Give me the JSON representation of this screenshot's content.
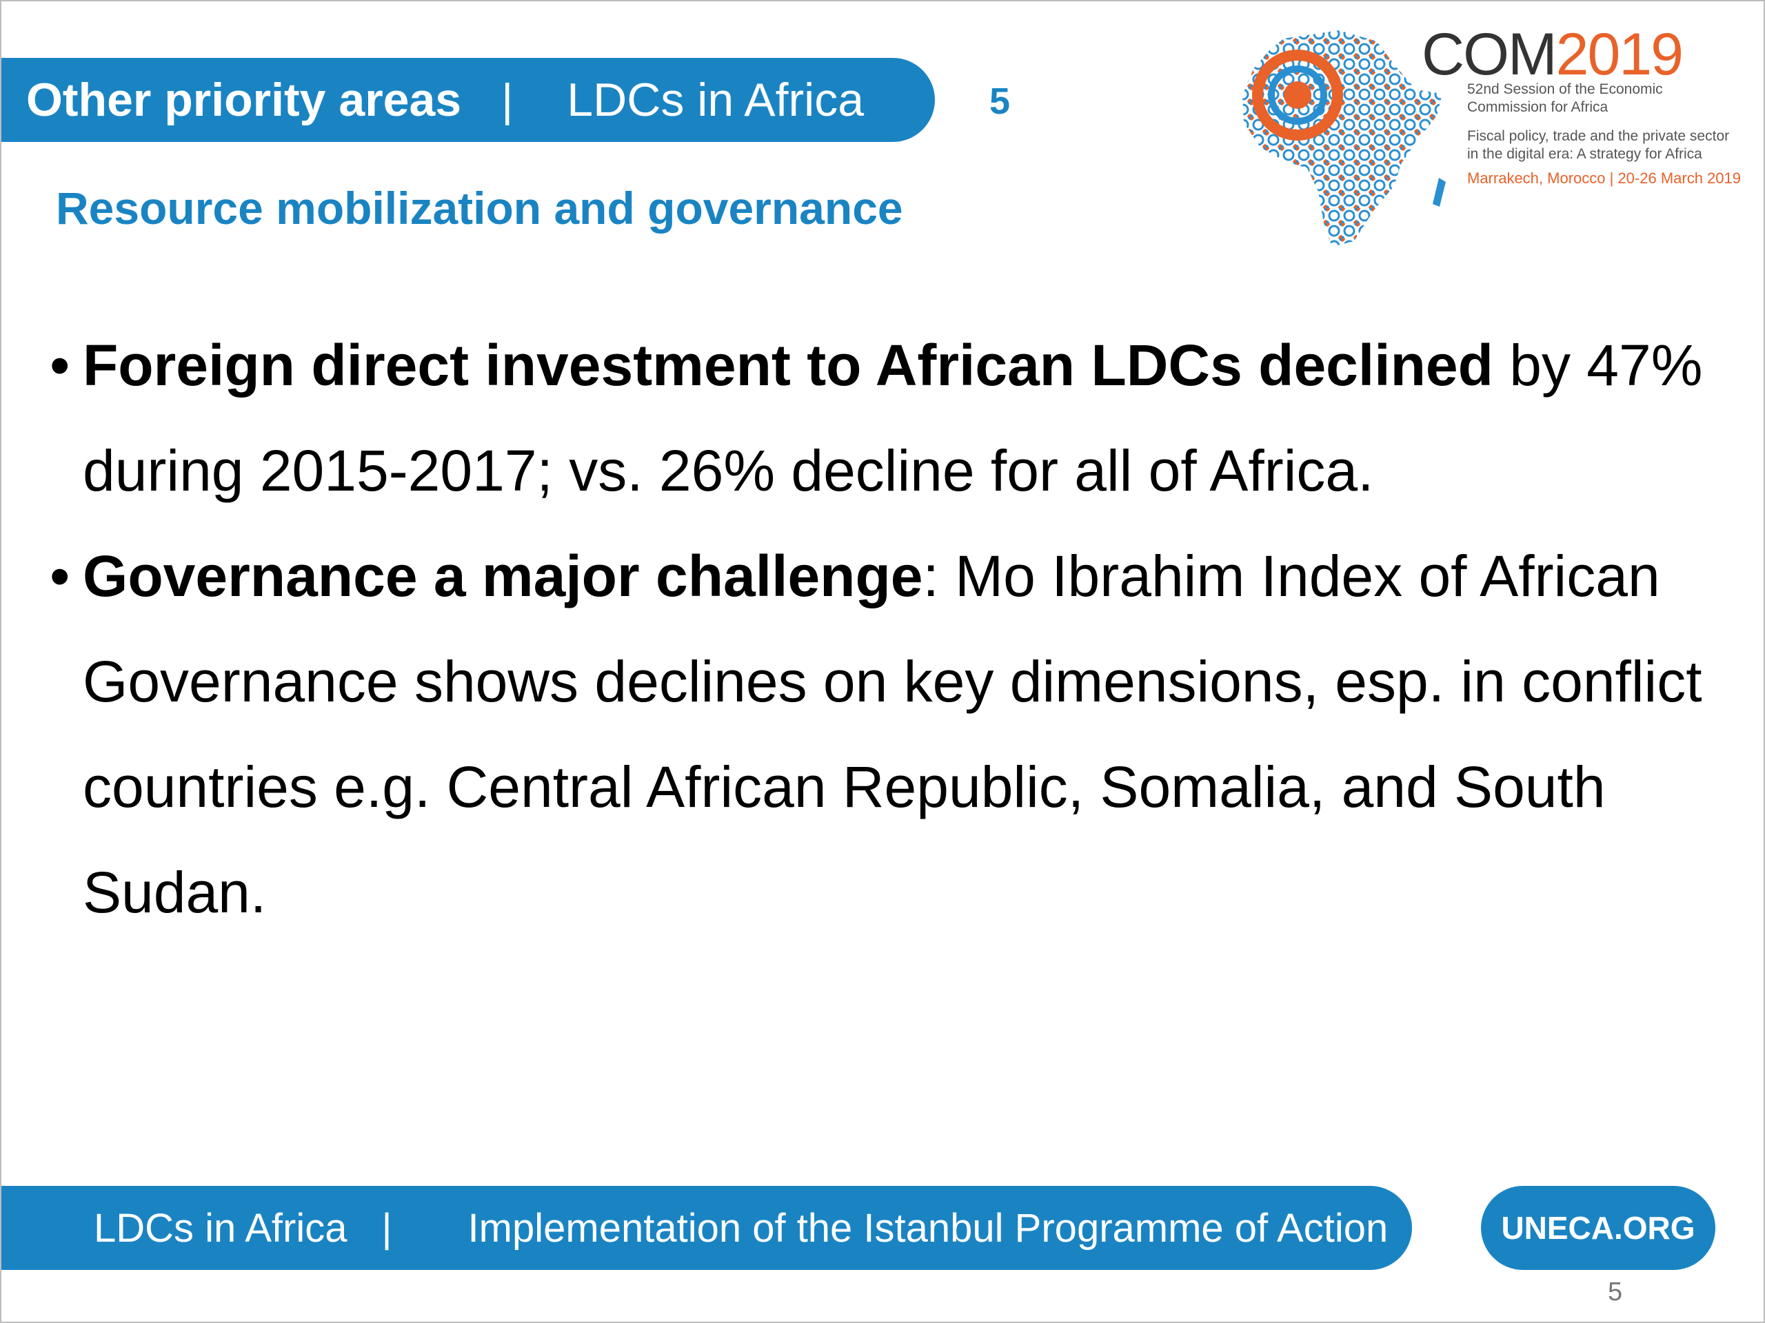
{
  "header": {
    "left": "Other priority areas",
    "separator": "|",
    "right": "LDCs in Africa",
    "slide_number": "5"
  },
  "subtitle": "Resource mobilization and governance",
  "logo": {
    "title_prefix": "COM",
    "title_year": "2019",
    "line1": "52nd Session of the Economic",
    "line2": "Commission for Africa",
    "line3": "Fiscal policy, trade and the private sector",
    "line4": "in the digital era: A strategy for Africa",
    "line5": "Marrakech, Morocco | 20-26 March 2019",
    "colors": {
      "blue": "#1a84c3",
      "orange": "#e8622a"
    }
  },
  "bullets": [
    {
      "bold": "Foreign direct investment to African LDCs declined",
      "rest": " by 47% during 2015-2017; vs. 26% decline for all of Africa."
    },
    {
      "bold": "Governance a major challenge",
      "rest": ": Mo Ibrahim Index of African Governance shows declines on key dimensions, esp. in conflict countries e.g. Central African Republic, Somalia, and South Sudan."
    }
  ],
  "footer": {
    "left": "LDCs in Africa",
    "separator": "|",
    "right": "Implementation of the Istanbul Programme of Action",
    "badge": "UNECA.ORG",
    "page_number": "5"
  }
}
